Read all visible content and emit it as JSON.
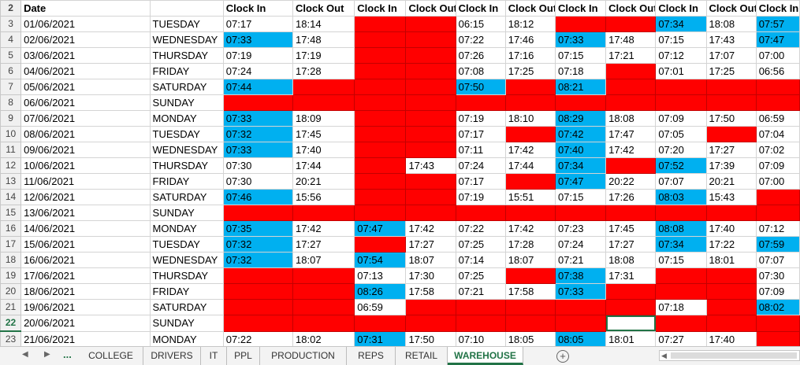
{
  "sheet": {
    "header": {
      "row_number": "2",
      "cells": [
        "Date",
        "",
        "Clock In",
        "Clock Out",
        "Clock In",
        "Clock Out",
        "Clock In",
        "Clock Out",
        "Clock In",
        "Clock Out",
        "Clock In",
        "Clock Out",
        "Clock In"
      ]
    },
    "rows": [
      {
        "n": "3",
        "date": "01/06/2021",
        "day": "TUESDAY",
        "cells": [
          [
            "07:17",
            ""
          ],
          [
            "18:14",
            ""
          ],
          [
            "",
            "R"
          ],
          [
            "",
            "R"
          ],
          [
            "06:15",
            ""
          ],
          [
            "18:12",
            ""
          ],
          [
            "",
            "R"
          ],
          [
            "",
            "R"
          ],
          [
            "07:34",
            "B"
          ],
          [
            "18:08",
            ""
          ],
          [
            "07:57",
            "B"
          ]
        ]
      },
      {
        "n": "4",
        "date": "02/06/2021",
        "day": "WEDNESDAY",
        "cells": [
          [
            "07:33",
            "B"
          ],
          [
            "17:48",
            ""
          ],
          [
            "",
            "R"
          ],
          [
            "",
            "R"
          ],
          [
            "07:22",
            ""
          ],
          [
            "17:46",
            ""
          ],
          [
            "07:33",
            "B"
          ],
          [
            "17:48",
            ""
          ],
          [
            "07:15",
            ""
          ],
          [
            "17:43",
            ""
          ],
          [
            "07:47",
            "B"
          ]
        ]
      },
      {
        "n": "5",
        "date": "03/06/2021",
        "day": "THURSDAY",
        "cells": [
          [
            "07:19",
            ""
          ],
          [
            "17:19",
            ""
          ],
          [
            "",
            "R"
          ],
          [
            "",
            "R"
          ],
          [
            "07:26",
            ""
          ],
          [
            "17:16",
            ""
          ],
          [
            "07:15",
            ""
          ],
          [
            "17:21",
            ""
          ],
          [
            "07:12",
            ""
          ],
          [
            "17:07",
            ""
          ],
          [
            "07:00",
            ""
          ]
        ]
      },
      {
        "n": "6",
        "date": "04/06/2021",
        "day": "FRIDAY",
        "cells": [
          [
            "07:24",
            ""
          ],
          [
            "17:28",
            ""
          ],
          [
            "",
            "R"
          ],
          [
            "",
            "R"
          ],
          [
            "07:08",
            ""
          ],
          [
            "17:25",
            ""
          ],
          [
            "07:18",
            ""
          ],
          [
            "",
            "R"
          ],
          [
            "07:01",
            ""
          ],
          [
            "17:25",
            ""
          ],
          [
            "06:56",
            ""
          ]
        ]
      },
      {
        "n": "7",
        "date": "05/06/2021",
        "day": "SATURDAY",
        "cells": [
          [
            "07:44",
            "B"
          ],
          [
            "",
            "R"
          ],
          [
            "",
            "R"
          ],
          [
            "",
            "R"
          ],
          [
            "07:50",
            "B"
          ],
          [
            "",
            "R"
          ],
          [
            "08:21",
            "B"
          ],
          [
            "",
            "R"
          ],
          [
            "",
            "R"
          ],
          [
            "",
            "R"
          ],
          [
            "",
            "R"
          ]
        ]
      },
      {
        "n": "8",
        "date": "06/06/2021",
        "day": "SUNDAY",
        "cells": [
          [
            "",
            "R"
          ],
          [
            "",
            "R"
          ],
          [
            "",
            "R"
          ],
          [
            "",
            "R"
          ],
          [
            "",
            "R"
          ],
          [
            "",
            "R"
          ],
          [
            "",
            "R"
          ],
          [
            "",
            "R"
          ],
          [
            "",
            "R"
          ],
          [
            "",
            "R"
          ],
          [
            "",
            "R"
          ]
        ]
      },
      {
        "n": "9",
        "date": "07/06/2021",
        "day": "MONDAY",
        "cells": [
          [
            "07:33",
            "B"
          ],
          [
            "18:09",
            ""
          ],
          [
            "",
            "R"
          ],
          [
            "",
            "R"
          ],
          [
            "07:19",
            ""
          ],
          [
            "18:10",
            ""
          ],
          [
            "08:29",
            "B"
          ],
          [
            "18:08",
            ""
          ],
          [
            "07:09",
            ""
          ],
          [
            "17:50",
            ""
          ],
          [
            "06:59",
            ""
          ]
        ]
      },
      {
        "n": "10",
        "date": "08/06/2021",
        "day": "TUESDAY",
        "cells": [
          [
            "07:32",
            "B"
          ],
          [
            "17:45",
            ""
          ],
          [
            "",
            "R"
          ],
          [
            "",
            "R"
          ],
          [
            "07:17",
            ""
          ],
          [
            "",
            "R"
          ],
          [
            "07:42",
            "B"
          ],
          [
            "17:47",
            ""
          ],
          [
            "07:05",
            ""
          ],
          [
            "",
            "R"
          ],
          [
            "07:04",
            ""
          ]
        ]
      },
      {
        "n": "11",
        "date": "09/06/2021",
        "day": "WEDNESDAY",
        "cells": [
          [
            "07:33",
            "B"
          ],
          [
            "17:40",
            ""
          ],
          [
            "",
            "R"
          ],
          [
            "",
            "R"
          ],
          [
            "07:11",
            ""
          ],
          [
            "17:42",
            ""
          ],
          [
            "07:40",
            "B"
          ],
          [
            "17:42",
            ""
          ],
          [
            "07:20",
            ""
          ],
          [
            "17:27",
            ""
          ],
          [
            "07:02",
            ""
          ]
        ]
      },
      {
        "n": "12",
        "date": "10/06/2021",
        "day": "THURSDAY",
        "cells": [
          [
            "07:30",
            ""
          ],
          [
            "17:44",
            ""
          ],
          [
            "",
            "R"
          ],
          [
            "17:43",
            ""
          ],
          [
            "07:24",
            ""
          ],
          [
            "17:44",
            ""
          ],
          [
            "07:34",
            "B"
          ],
          [
            "",
            "R"
          ],
          [
            "07:52",
            "B"
          ],
          [
            "17:39",
            ""
          ],
          [
            "07:09",
            ""
          ]
        ]
      },
      {
        "n": "13",
        "date": "11/06/2021",
        "day": "FRIDAY",
        "cells": [
          [
            "07:30",
            ""
          ],
          [
            "20:21",
            ""
          ],
          [
            "",
            "R"
          ],
          [
            "",
            "R"
          ],
          [
            "07:17",
            ""
          ],
          [
            "",
            "R"
          ],
          [
            "07:47",
            "B"
          ],
          [
            "20:22",
            ""
          ],
          [
            "07:07",
            ""
          ],
          [
            "20:21",
            ""
          ],
          [
            "07:00",
            ""
          ]
        ]
      },
      {
        "n": "14",
        "date": "12/06/2021",
        "day": "SATURDAY",
        "cells": [
          [
            "07:46",
            "B"
          ],
          [
            "15:56",
            ""
          ],
          [
            "",
            "R"
          ],
          [
            "",
            "R"
          ],
          [
            "07:19",
            ""
          ],
          [
            "15:51",
            ""
          ],
          [
            "07:15",
            ""
          ],
          [
            "17:26",
            ""
          ],
          [
            "08:03",
            "B"
          ],
          [
            "15:43",
            ""
          ],
          [
            "",
            "R"
          ]
        ]
      },
      {
        "n": "15",
        "date": "13/06/2021",
        "day": "SUNDAY",
        "cells": [
          [
            "",
            "R"
          ],
          [
            "",
            "R"
          ],
          [
            "",
            "R"
          ],
          [
            "",
            "R"
          ],
          [
            "",
            "R"
          ],
          [
            "",
            "R"
          ],
          [
            "",
            "R"
          ],
          [
            "",
            "R"
          ],
          [
            "",
            "R"
          ],
          [
            "",
            "R"
          ],
          [
            "",
            "R"
          ]
        ]
      },
      {
        "n": "16",
        "date": "14/06/2021",
        "day": "MONDAY",
        "cells": [
          [
            "07:35",
            "B"
          ],
          [
            "17:42",
            ""
          ],
          [
            "07:47",
            "B"
          ],
          [
            "17:42",
            ""
          ],
          [
            "07:22",
            ""
          ],
          [
            "17:42",
            ""
          ],
          [
            "07:23",
            ""
          ],
          [
            "17:45",
            ""
          ],
          [
            "08:08",
            "B"
          ],
          [
            "17:40",
            ""
          ],
          [
            "07:12",
            ""
          ]
        ]
      },
      {
        "n": "17",
        "date": "15/06/2021",
        "day": "TUESDAY",
        "cells": [
          [
            "07:32",
            "B"
          ],
          [
            "17:27",
            ""
          ],
          [
            "",
            "R"
          ],
          [
            "17:27",
            ""
          ],
          [
            "07:25",
            ""
          ],
          [
            "17:28",
            ""
          ],
          [
            "07:24",
            ""
          ],
          [
            "17:27",
            ""
          ],
          [
            "07:34",
            "B"
          ],
          [
            "17:22",
            ""
          ],
          [
            "07:59",
            "B"
          ]
        ]
      },
      {
        "n": "18",
        "date": "16/06/2021",
        "day": "WEDNESDAY",
        "cells": [
          [
            "07:32",
            "B"
          ],
          [
            "18:07",
            ""
          ],
          [
            "07:54",
            "B"
          ],
          [
            "18:07",
            ""
          ],
          [
            "07:14",
            ""
          ],
          [
            "18:07",
            ""
          ],
          [
            "07:21",
            ""
          ],
          [
            "18:08",
            ""
          ],
          [
            "07:15",
            ""
          ],
          [
            "18:01",
            ""
          ],
          [
            "07:07",
            ""
          ]
        ]
      },
      {
        "n": "19",
        "date": "17/06/2021",
        "day": "THURSDAY",
        "cells": [
          [
            "",
            "R"
          ],
          [
            "",
            "R"
          ],
          [
            "07:13",
            ""
          ],
          [
            "17:30",
            ""
          ],
          [
            "07:25",
            ""
          ],
          [
            "",
            "R"
          ],
          [
            "07:38",
            "B"
          ],
          [
            "17:31",
            ""
          ],
          [
            "",
            "R"
          ],
          [
            "",
            "R"
          ],
          [
            "07:30",
            ""
          ]
        ]
      },
      {
        "n": "20",
        "date": "18/06/2021",
        "day": "FRIDAY",
        "cells": [
          [
            "",
            "R"
          ],
          [
            "",
            "R"
          ],
          [
            "08:26",
            "B"
          ],
          [
            "17:58",
            ""
          ],
          [
            "07:21",
            ""
          ],
          [
            "17:58",
            ""
          ],
          [
            "07:33",
            "B"
          ],
          [
            "",
            "R"
          ],
          [
            "",
            "R"
          ],
          [
            "",
            "R"
          ],
          [
            "07:09",
            ""
          ]
        ]
      },
      {
        "n": "21",
        "date": "19/06/2021",
        "day": "SATURDAY",
        "cells": [
          [
            "",
            "R"
          ],
          [
            "",
            "R"
          ],
          [
            "06:59",
            ""
          ],
          [
            "",
            "R"
          ],
          [
            "",
            "R"
          ],
          [
            "",
            "R"
          ],
          [
            "",
            "R"
          ],
          [
            "",
            "R"
          ],
          [
            "07:18",
            ""
          ],
          [
            "",
            "R"
          ],
          [
            "08:02",
            "B"
          ]
        ]
      },
      {
        "n": "22",
        "date": "20/06/2021",
        "day": "SUNDAY",
        "cells": [
          [
            "",
            "R"
          ],
          [
            "",
            "R"
          ],
          [
            "",
            "R"
          ],
          [
            "",
            "R"
          ],
          [
            "",
            "R"
          ],
          [
            "",
            "R"
          ],
          [
            "",
            "R"
          ],
          [
            "",
            "S"
          ],
          [
            "",
            "R"
          ],
          [
            "",
            "R"
          ],
          [
            "",
            "R"
          ]
        ]
      },
      {
        "n": "23",
        "date": "21/06/2021",
        "day": "MONDAY",
        "cells": [
          [
            "07:22",
            ""
          ],
          [
            "18:02",
            ""
          ],
          [
            "07:31",
            "B"
          ],
          [
            "17:50",
            ""
          ],
          [
            "07:10",
            ""
          ],
          [
            "18:05",
            ""
          ],
          [
            "08:05",
            "B"
          ],
          [
            "18:01",
            ""
          ],
          [
            "07:27",
            ""
          ],
          [
            "17:40",
            ""
          ],
          [
            "",
            "R"
          ]
        ]
      }
    ],
    "selected_row": "22"
  },
  "tabs": {
    "nav_prev": "◀",
    "nav_next": "▶",
    "more": "...",
    "items": [
      "COLLEGE",
      "DRIVERS",
      "IT",
      "PPL",
      "PRODUCTION",
      "REPS",
      "RETAIL",
      "WAREHOUSE"
    ],
    "active": "WAREHOUSE",
    "add_sheet": "+"
  },
  "colors": {
    "red": "#ff0000",
    "blue": "#00b0f0",
    "excel_green": "#217346"
  }
}
